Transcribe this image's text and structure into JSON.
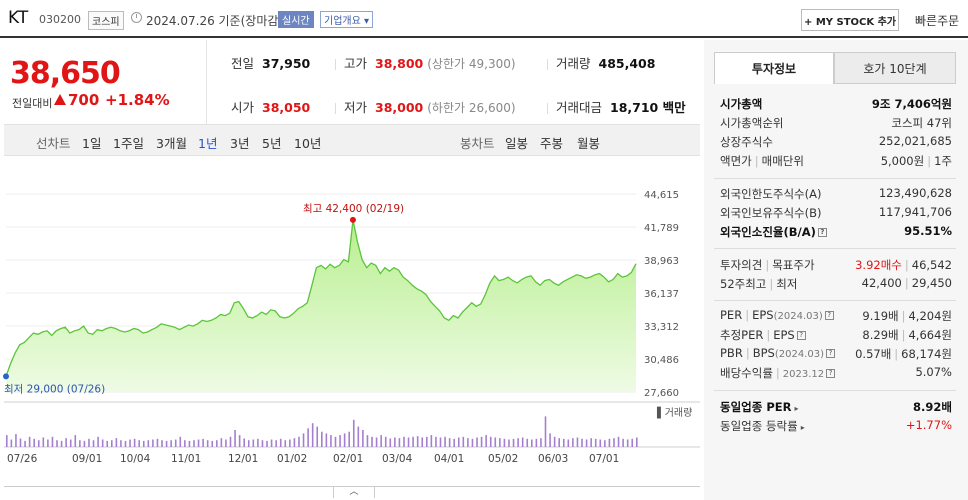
{
  "header": {
    "name": "KT",
    "code": "030200",
    "market": "코스피",
    "date": "2024.07.26  기준(장마감)",
    "live": "실시간",
    "company_info": "기업개요 ▾",
    "mystock": "+ MY STOCK 추가",
    "quick_order": "빠른주문"
  },
  "price": {
    "current": "38,650",
    "change_label": "전일대비",
    "change": "700",
    "change_pct": "+1.84%"
  },
  "quotes": {
    "prev_label": "전일",
    "prev": "37,950",
    "high_label": "고가",
    "high": "38,800",
    "upper_limit": "(상한가 49,300)",
    "volume_label": "거래량",
    "volume": "485,408",
    "open_label": "시가",
    "open": "38,050",
    "low_label": "저가",
    "low": "38,000",
    "lower_limit": "(하한가 26,600)",
    "amount_label": "거래대금",
    "amount": "18,710 백만"
  },
  "periods": {
    "line_label": "선차트",
    "items": [
      "1일",
      "1주일",
      "3개월",
      "1년",
      "3년",
      "5년",
      "10년"
    ],
    "active": "1년",
    "candle_label": "봉차트",
    "candle_items": [
      "일봉",
      "주봉",
      "월봉"
    ]
  },
  "chart_data": {
    "type": "area",
    "y_ticks": [
      "44,615",
      "41,789",
      "38,963",
      "36,137",
      "33,312",
      "30,486",
      "27,660"
    ],
    "ylim": [
      27660,
      44615
    ],
    "x_labels": [
      "07/26",
      "09/01",
      "10/04",
      "11/01",
      "12/01",
      "01/02",
      "02/01",
      "03/04",
      "04/01",
      "05/02",
      "06/03",
      "07/01"
    ],
    "high_annotation": "최고 42,400 (02/19)",
    "low_annotation": "최저 29,000 (07/26)",
    "volume_label": "거래량",
    "values": [
      29000,
      30100,
      31000,
      31700,
      31900,
      32300,
      32700,
      32600,
      32800,
      32900,
      32500,
      32900,
      33100,
      33200,
      32700,
      32900,
      33000,
      33300,
      32700,
      32600,
      33000,
      32900,
      33100,
      33200,
      33100,
      32900,
      32800,
      32900,
      33100,
      33000,
      32700,
      32800,
      33000,
      33200,
      33500,
      33400,
      33300,
      33200,
      33000,
      33200,
      33400,
      33300,
      33500,
      33800,
      33700,
      33800,
      34000,
      34300,
      34200,
      34400,
      35300,
      35400,
      34800,
      34100,
      34000,
      34200,
      34500,
      34300,
      34700,
      34600,
      34100,
      34000,
      34100,
      34400,
      34800,
      35000,
      35300,
      36800,
      38300,
      38500,
      38200,
      38600,
      38300,
      38500,
      39000,
      38800,
      42400,
      40500,
      39000,
      38300,
      38700,
      38500,
      37800,
      38300,
      38000,
      38300,
      38100,
      37500,
      37200,
      36800,
      36500,
      36300,
      36000,
      35400,
      35000,
      34600,
      34000,
      33800,
      34200,
      34000,
      34500,
      34900,
      35300,
      35000,
      35200,
      36000,
      37000,
      37600,
      37200,
      37300,
      37500,
      37200,
      37000,
      37300,
      37500,
      37600,
      37100,
      36800,
      37200,
      37300,
      37000,
      36800,
      37100,
      37300,
      37500,
      37700,
      37600,
      37400,
      37500,
      37700,
      37800,
      37500,
      37100,
      37300,
      37800,
      37500,
      37600,
      37900,
      38650
    ],
    "volumes": [
      0.35,
      0.22,
      0.38,
      0.25,
      0.18,
      0.3,
      0.24,
      0.2,
      0.28,
      0.22,
      0.3,
      0.2,
      0.18,
      0.26,
      0.22,
      0.35,
      0.2,
      0.18,
      0.24,
      0.2,
      0.3,
      0.22,
      0.18,
      0.2,
      0.26,
      0.2,
      0.18,
      0.22,
      0.24,
      0.2,
      0.18,
      0.2,
      0.22,
      0.24,
      0.2,
      0.18,
      0.2,
      0.22,
      0.3,
      0.2,
      0.18,
      0.2,
      0.22,
      0.24,
      0.2,
      0.18,
      0.2,
      0.26,
      0.22,
      0.3,
      0.5,
      0.35,
      0.25,
      0.2,
      0.22,
      0.24,
      0.2,
      0.18,
      0.22,
      0.2,
      0.24,
      0.2,
      0.22,
      0.26,
      0.3,
      0.4,
      0.55,
      0.7,
      0.6,
      0.45,
      0.4,
      0.35,
      0.3,
      0.35,
      0.4,
      0.45,
      0.8,
      0.6,
      0.5,
      0.35,
      0.3,
      0.28,
      0.35,
      0.3,
      0.25,
      0.28,
      0.26,
      0.3,
      0.28,
      0.3,
      0.32,
      0.28,
      0.3,
      0.35,
      0.3,
      0.28,
      0.3,
      0.26,
      0.24,
      0.28,
      0.3,
      0.26,
      0.24,
      0.28,
      0.3,
      0.35,
      0.3,
      0.28,
      0.26,
      0.24,
      0.22,
      0.24,
      0.26,
      0.28,
      0.24,
      0.22,
      0.24,
      0.26,
      0.9,
      0.4,
      0.3,
      0.26,
      0.24,
      0.22,
      0.26,
      0.28,
      0.24,
      0.22,
      0.26,
      0.24,
      0.22,
      0.2,
      0.24,
      0.26,
      0.3,
      0.24,
      0.22,
      0.24,
      0.28
    ]
  },
  "right_panel": {
    "tab_invest": "투자정보",
    "tab_hoga": "호가 10단계",
    "mcap_label": "시가총액",
    "mcap": "9조 7,406억원",
    "mcap_rank_label": "시가총액순위",
    "mcap_rank": "코스피 47위",
    "shares_label": "상장주식수",
    "shares": "252,021,685",
    "par_label": "액면가",
    "unit_label": "매매단위",
    "par": "5,000원",
    "unit": "1주",
    "foreign_limit_label": "외국인한도주식수(A)",
    "foreign_limit": "123,490,628",
    "foreign_hold_label": "외국인보유주식수(B)",
    "foreign_hold": "117,941,706",
    "foreign_ratio_label": "외국인소진율(B/A)",
    "foreign_ratio": "95.51%",
    "opinion_label": "투자의견",
    "target_label": "목표주가",
    "opinion": "3.92매수",
    "target": "46,542",
    "w52_label": "52주최고",
    "w52_low_label": "최저",
    "w52_high": "42,400",
    "w52_low": "29,450",
    "per_label": "PER",
    "eps_label": "EPS",
    "eps_year": "(2024.03)",
    "per": "9.19배",
    "eps": "4,204원",
    "fper_label": "추정PER",
    "feps_label": "EPS",
    "fper": "8.29배",
    "feps": "4,664원",
    "pbr_label": "PBR",
    "bps_label": "BPS",
    "bps_year": "(2024.03)",
    "pbr": "0.57배",
    "bps": "68,174원",
    "div_label": "배당수익률",
    "div_year": "2023.12",
    "div": "5.07%",
    "sector_per_label": "동일업종 PER",
    "sector_per": "8.92배",
    "sector_rate_label": "동일업종 등락률",
    "sector_rate": "+1.77%"
  }
}
